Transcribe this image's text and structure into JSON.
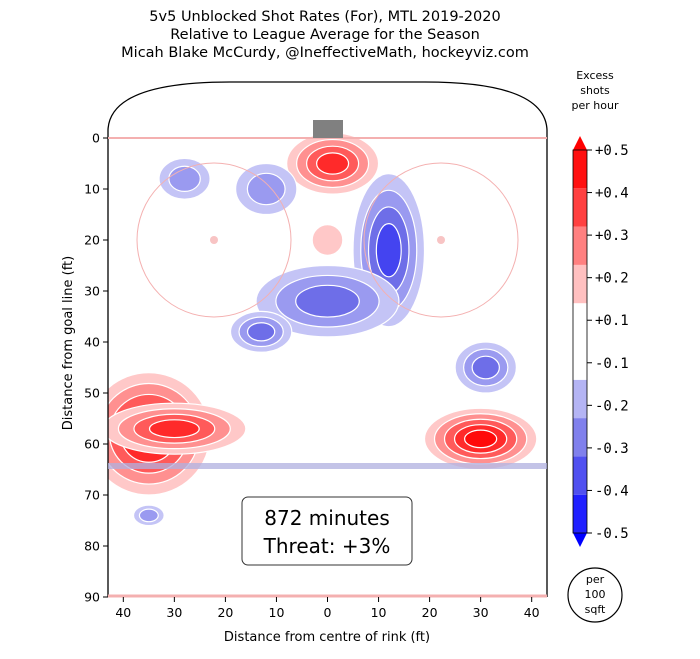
{
  "title_lines": [
    "5v5 Unblocked Shot Rates (For), MTL 2019-2020",
    "Relative to League Average for the Season",
    "Micah Blake McCurdy, @IneffectiveMath, hockeyviz.com"
  ],
  "chart_data": {
    "type": "heatmap",
    "xlabel": "Distance from centre of rink (ft)",
    "ylabel": "Distance from goal line (ft)",
    "xlim": [
      43,
      -43
    ],
    "ylim": [
      0,
      90
    ],
    "x_ticks": [
      40,
      30,
      20,
      10,
      0,
      10,
      20,
      30,
      40
    ],
    "y_ticks": [
      0,
      10,
      20,
      30,
      40,
      50,
      60,
      70,
      80,
      90
    ],
    "colorbar": {
      "title_lines": [
        "Excess",
        "shots",
        "per hour"
      ],
      "levels": [
        -0.5,
        -0.4,
        -0.3,
        -0.2,
        -0.1,
        0.1,
        0.2,
        0.3,
        0.4,
        0.5
      ],
      "tick_labels": [
        "+0.5",
        "+0.4",
        "+0.3",
        "+0.2",
        "+0.1",
        "-0.1",
        "-0.2",
        "-0.3",
        "-0.4",
        "-0.5"
      ],
      "colors": [
        "#2020ff",
        "#5050f0",
        "#8080ec",
        "#b4b4f4",
        "#ffffff",
        "#ffc0c0",
        "#ff8080",
        "#ff4040",
        "#ff1010"
      ]
    },
    "unit_note_lines": [
      "per",
      "100",
      "sqft"
    ],
    "annotation": {
      "minutes": "872 minutes",
      "threat": "Threat: +3%"
    },
    "regions": [
      {
        "x": 35,
        "y": 58,
        "rx": 12,
        "ry": 12,
        "value": 0.46
      },
      {
        "x": 30,
        "y": 57,
        "rx": 14,
        "ry": 5,
        "value": 0.4
      },
      {
        "x": -30,
        "y": 59,
        "rx": 11,
        "ry": 6,
        "value": 0.46
      },
      {
        "x": -1,
        "y": 5,
        "rx": 9,
        "ry": 6,
        "value": 0.44
      },
      {
        "x": 0,
        "y": 20,
        "rx": 3,
        "ry": 3,
        "value": 0.15
      },
      {
        "x": -12,
        "y": 22,
        "rx": 7,
        "ry": 15,
        "value": -0.36
      },
      {
        "x": 0,
        "y": 32,
        "rx": 14,
        "ry": 7,
        "value": -0.3
      },
      {
        "x": 13,
        "y": 38,
        "rx": 6,
        "ry": 4,
        "value": -0.25
      },
      {
        "x": -31,
        "y": 45,
        "rx": 6,
        "ry": 5,
        "value": -0.34
      },
      {
        "x": 28,
        "y": 8,
        "rx": 5,
        "ry": 4,
        "value": -0.18
      },
      {
        "x": 12,
        "y": 10,
        "rx": 6,
        "ry": 5,
        "value": -0.2
      },
      {
        "x": 35,
        "y": 74,
        "rx": 3,
        "ry": 2,
        "value": -0.2
      }
    ]
  }
}
